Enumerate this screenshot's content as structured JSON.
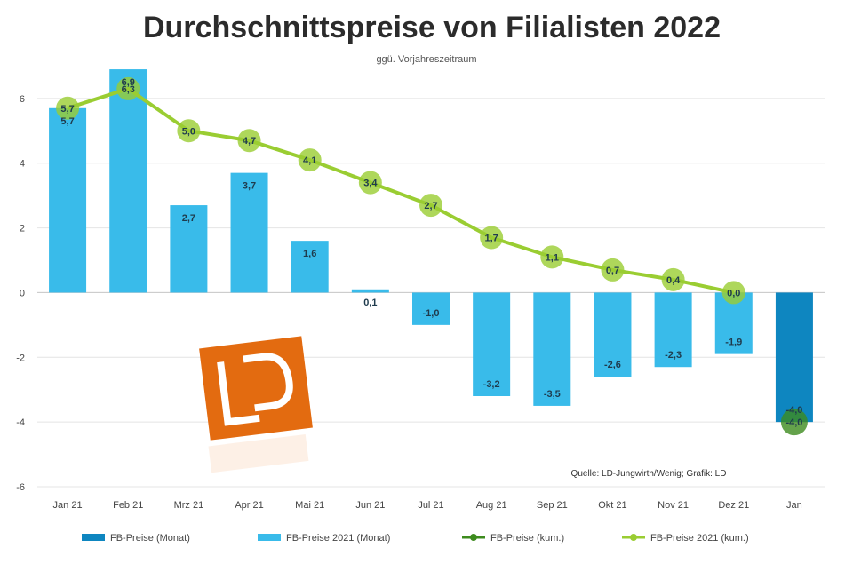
{
  "chart_data": {
    "type": "bar",
    "title": "Durchschnittspreise von Filialisten 2022",
    "subtitle": "ggü. Vorjahreszeitraum",
    "note": "Quelle: LD-Jungwirth/Wenig; Grafik: LD",
    "categories": [
      "Jan 21",
      "Feb 21",
      "Mrz 21",
      "Apr 21",
      "Mai 21",
      "Jun 21",
      "Jul 21",
      "Aug 21",
      "Sep 21",
      "Okt 21",
      "Nov 21",
      "Dez 21",
      "Jan"
    ],
    "ylim": [
      -6,
      8
    ],
    "yticks": [
      "-6",
      "-4",
      "-2",
      "0",
      "2",
      "4",
      "6"
    ],
    "series": [
      {
        "name": "FB-Preise (Monat)",
        "kind": "bar",
        "color": "#0e86c0",
        "values": [
          null,
          null,
          null,
          null,
          null,
          null,
          null,
          null,
          null,
          null,
          null,
          null,
          -4.0
        ],
        "labels": [
          "",
          "",
          "",
          "",
          "",
          "",
          "",
          "",
          "",
          "",
          "",
          "",
          "-4,0"
        ]
      },
      {
        "name": "FB-Preise 2021 (Monat)",
        "kind": "bar",
        "color": "#39bbea",
        "values": [
          5.7,
          6.9,
          2.7,
          3.7,
          1.6,
          0.1,
          -1.0,
          -3.2,
          -3.5,
          -2.6,
          -2.3,
          -1.9,
          null
        ],
        "labels": [
          "5,7",
          "6,9",
          "2,7",
          "3,7",
          "1,6",
          "0,1",
          "-1,0",
          "-3,2",
          "-3,5",
          "-2,6",
          "-2,3",
          "-1,9",
          ""
        ]
      },
      {
        "name": "FB-Preise (kum.)",
        "kind": "line",
        "color": "#3d8b1e",
        "values": [
          null,
          null,
          null,
          null,
          null,
          null,
          null,
          null,
          null,
          null,
          null,
          null,
          -4.0
        ],
        "labels": [
          "",
          "",
          "",
          "",
          "",
          "",
          "",
          "",
          "",
          "",
          "",
          "",
          "-4,0"
        ]
      },
      {
        "name": "FB-Preise 2021 (kum.)",
        "kind": "line",
        "color": "#9acd32",
        "values": [
          5.7,
          6.3,
          5.0,
          4.7,
          4.1,
          3.4,
          2.7,
          1.7,
          1.1,
          0.7,
          0.4,
          0.0,
          null
        ],
        "labels": [
          "5,7",
          "6,3",
          "5,0",
          "4,7",
          "4,1",
          "3,4",
          "2,7",
          "1,7",
          "1,1",
          "0,7",
          "0,4",
          "0,0",
          ""
        ]
      }
    ],
    "grid": true,
    "legend_position": "bottom"
  },
  "logo": {
    "text": "LD",
    "color": "#e36b10"
  }
}
